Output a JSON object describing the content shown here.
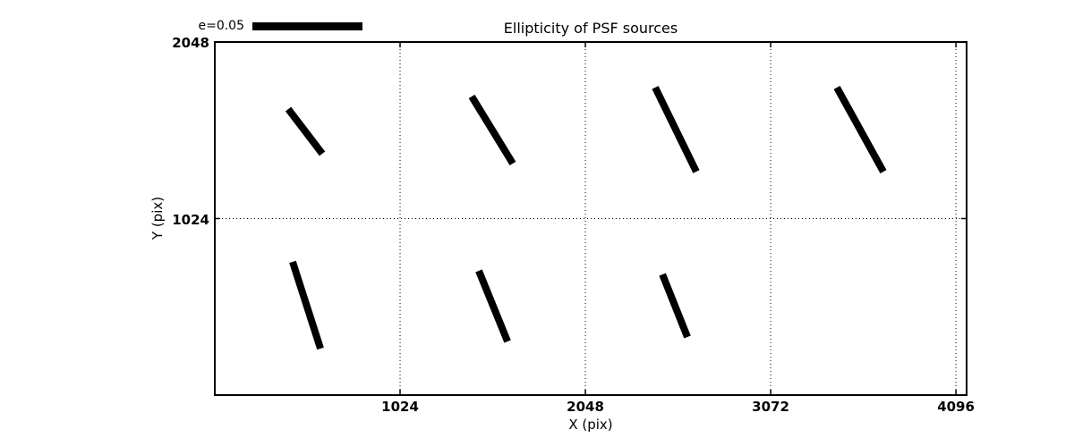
{
  "colors": {
    "foreground": "#000000",
    "background": "#ffffff"
  },
  "chart_data": {
    "type": "whisker",
    "title": "Ellipticity of PSF sources",
    "xlabel": "X (pix)",
    "ylabel": "Y (pix)",
    "xlim": [
      0,
      4155
    ],
    "ylim": [
      0,
      2048
    ],
    "x_ticks": [
      1024,
      2048,
      3072,
      4096
    ],
    "y_ticks": [
      1024,
      2048
    ],
    "grid": "dotted",
    "legend": {
      "label": "e=0.05",
      "e_reference": 0.05,
      "location": "above-top-left"
    },
    "segments": [
      {
        "x1": 406,
        "y1": 1659,
        "x2": 594,
        "y2": 1400,
        "e": 0.025
      },
      {
        "x1": 1420,
        "y1": 1732,
        "x2": 1647,
        "y2": 1343,
        "e": 0.035
      },
      {
        "x1": 2434,
        "y1": 1784,
        "x2": 2661,
        "y2": 1296,
        "e": 0.042
      },
      {
        "x1": 3438,
        "y1": 1784,
        "x2": 3695,
        "y2": 1296,
        "e": 0.043
      },
      {
        "x1": 430,
        "y1": 773,
        "x2": 584,
        "y2": 270,
        "e": 0.041
      },
      {
        "x1": 1459,
        "y1": 721,
        "x2": 1618,
        "y2": 311,
        "e": 0.034
      },
      {
        "x1": 2474,
        "y1": 700,
        "x2": 2612,
        "y2": 337,
        "e": 0.03
      }
    ]
  }
}
